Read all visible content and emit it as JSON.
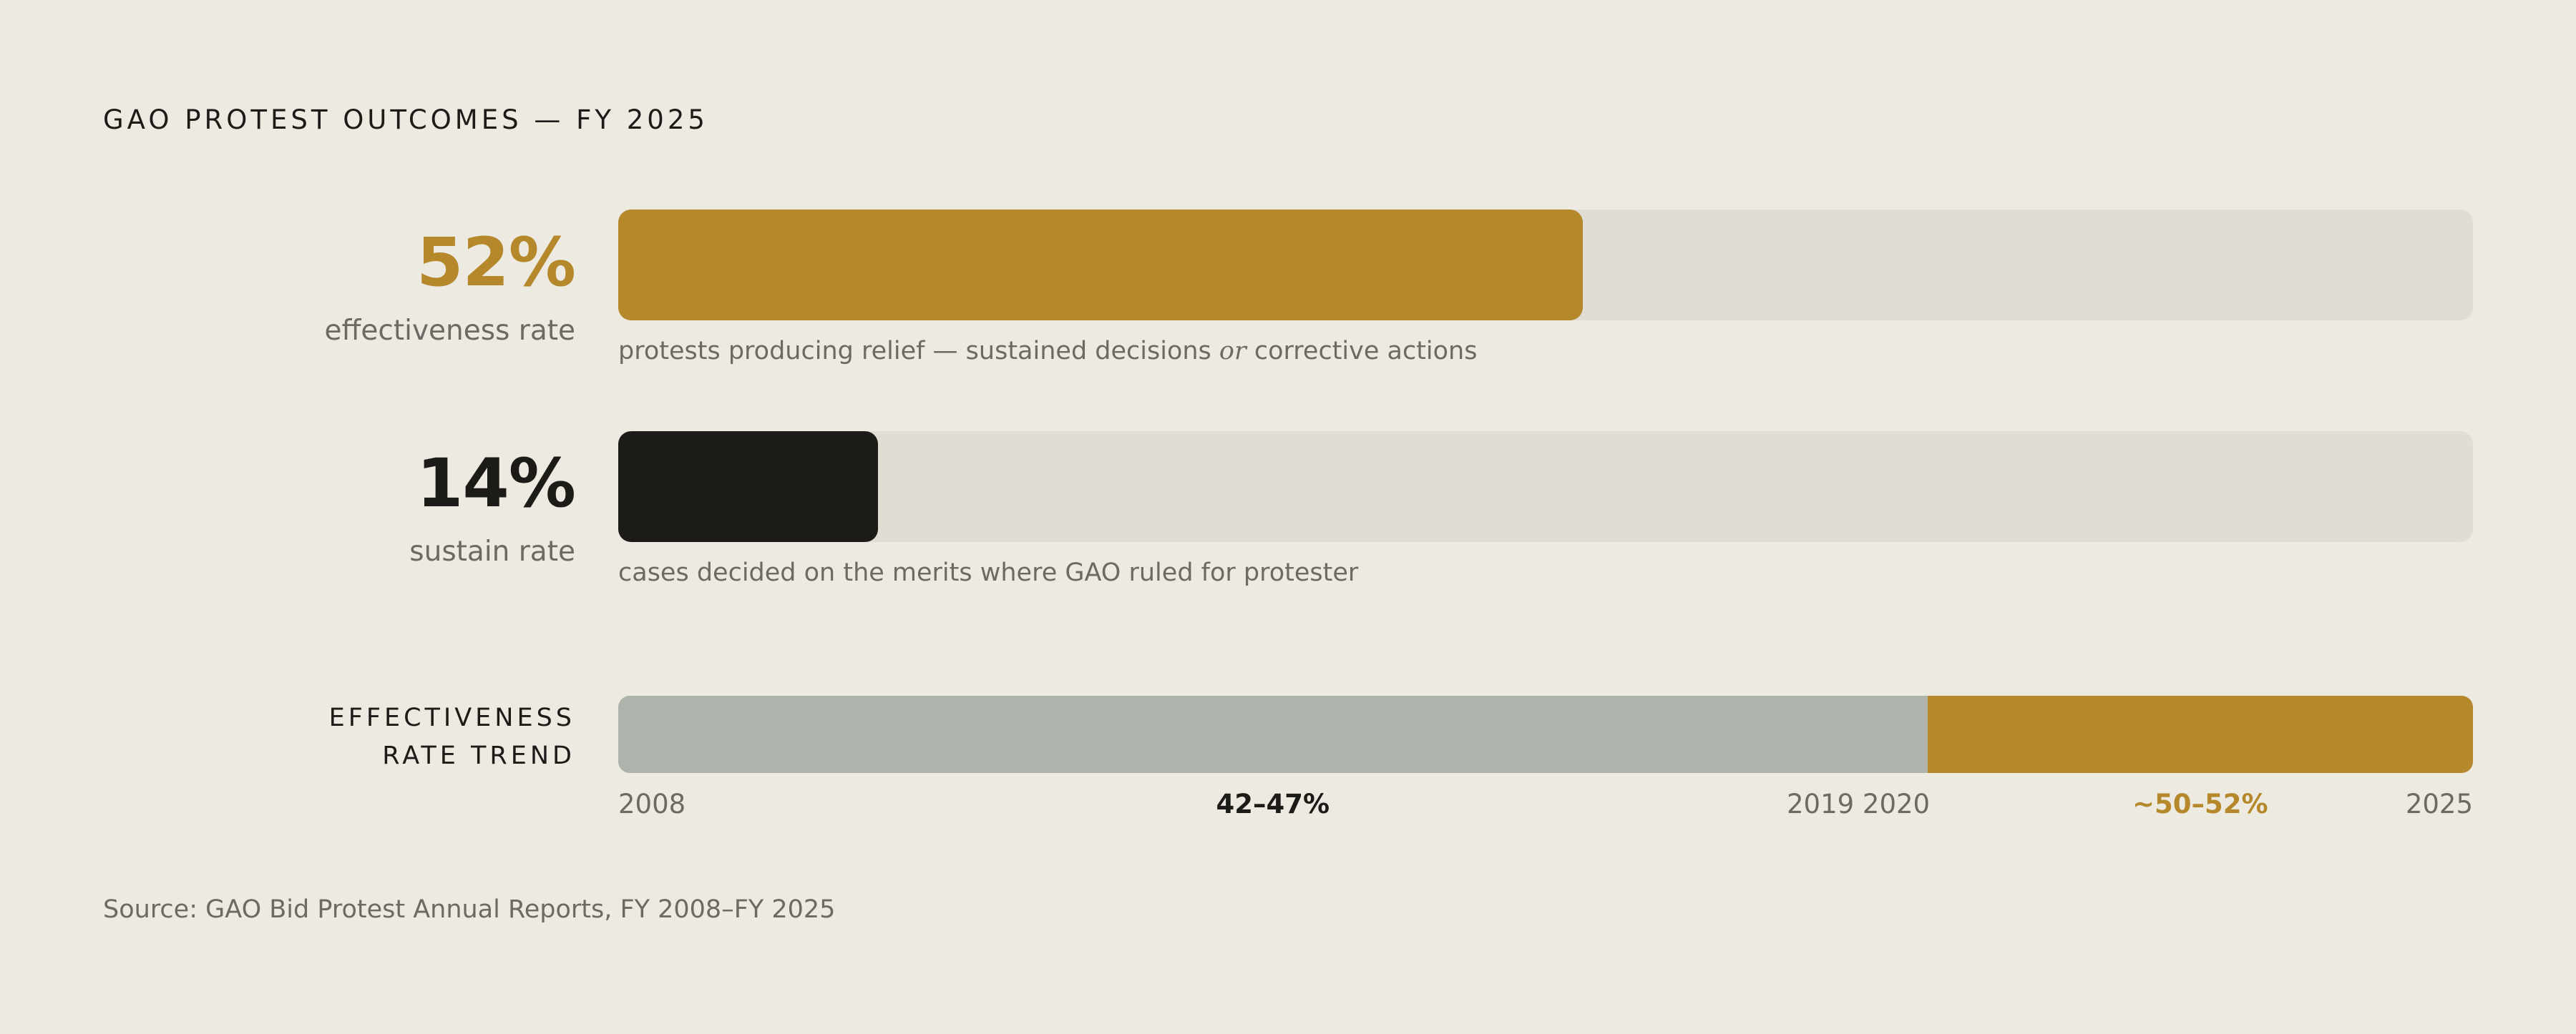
{
  "title": "GAO PROTEST OUTCOMES — FY 2025",
  "colors": {
    "accent": "#b5892b",
    "dark": "#1c1b18",
    "track": "#e0ddd5",
    "trend_early": "#aeb4ab",
    "background": "#edeae2",
    "muted_text": "#6b6a65"
  },
  "metrics": [
    {
      "value_text": "52%",
      "label": "effectiveness rate",
      "fraction": 0.52,
      "color": "#b5892b",
      "caption_before": "protests producing relief — sustained decisions ",
      "caption_emphasis": "or",
      "caption_after": " corrective actions"
    },
    {
      "value_text": "14%",
      "label": "sustain rate",
      "fraction": 0.14,
      "color": "#1c1b18",
      "caption": "cases decided on the merits where GAO ruled for protester"
    }
  ],
  "trend": {
    "label_line1": "EFFECTIVENESS",
    "label_line2": "RATE TREND",
    "start_year": 2008,
    "end_year": 2025,
    "axis_labels": [
      "2008",
      "2019 2020",
      "2025"
    ],
    "periods": [
      {
        "label": "42–47%",
        "from_year": 2008,
        "to_year": 2019,
        "color": "#aeb4ab",
        "label_color": "#1c1b18"
      },
      {
        "label": "~50–52%",
        "from_year": 2020,
        "to_year": 2025,
        "color": "#b5892b",
        "label_color": "#b5892b"
      }
    ]
  },
  "chart_data": {
    "type": "bar",
    "title": "GAO PROTEST OUTCOMES — FY 2025",
    "categories": [
      "effectiveness rate",
      "sustain rate"
    ],
    "values": [
      52,
      14
    ],
    "unit": "%",
    "ylim": [
      0,
      100
    ],
    "trend": {
      "label": "EFFECTIVENESS RATE TREND",
      "periods": [
        {
          "years": "2008–2019",
          "range": "42–47%"
        },
        {
          "years": "2020–2025",
          "range": "~50–52%"
        }
      ]
    }
  },
  "source": "Source: GAO Bid Protest Annual Reports, FY 2008–FY 2025"
}
